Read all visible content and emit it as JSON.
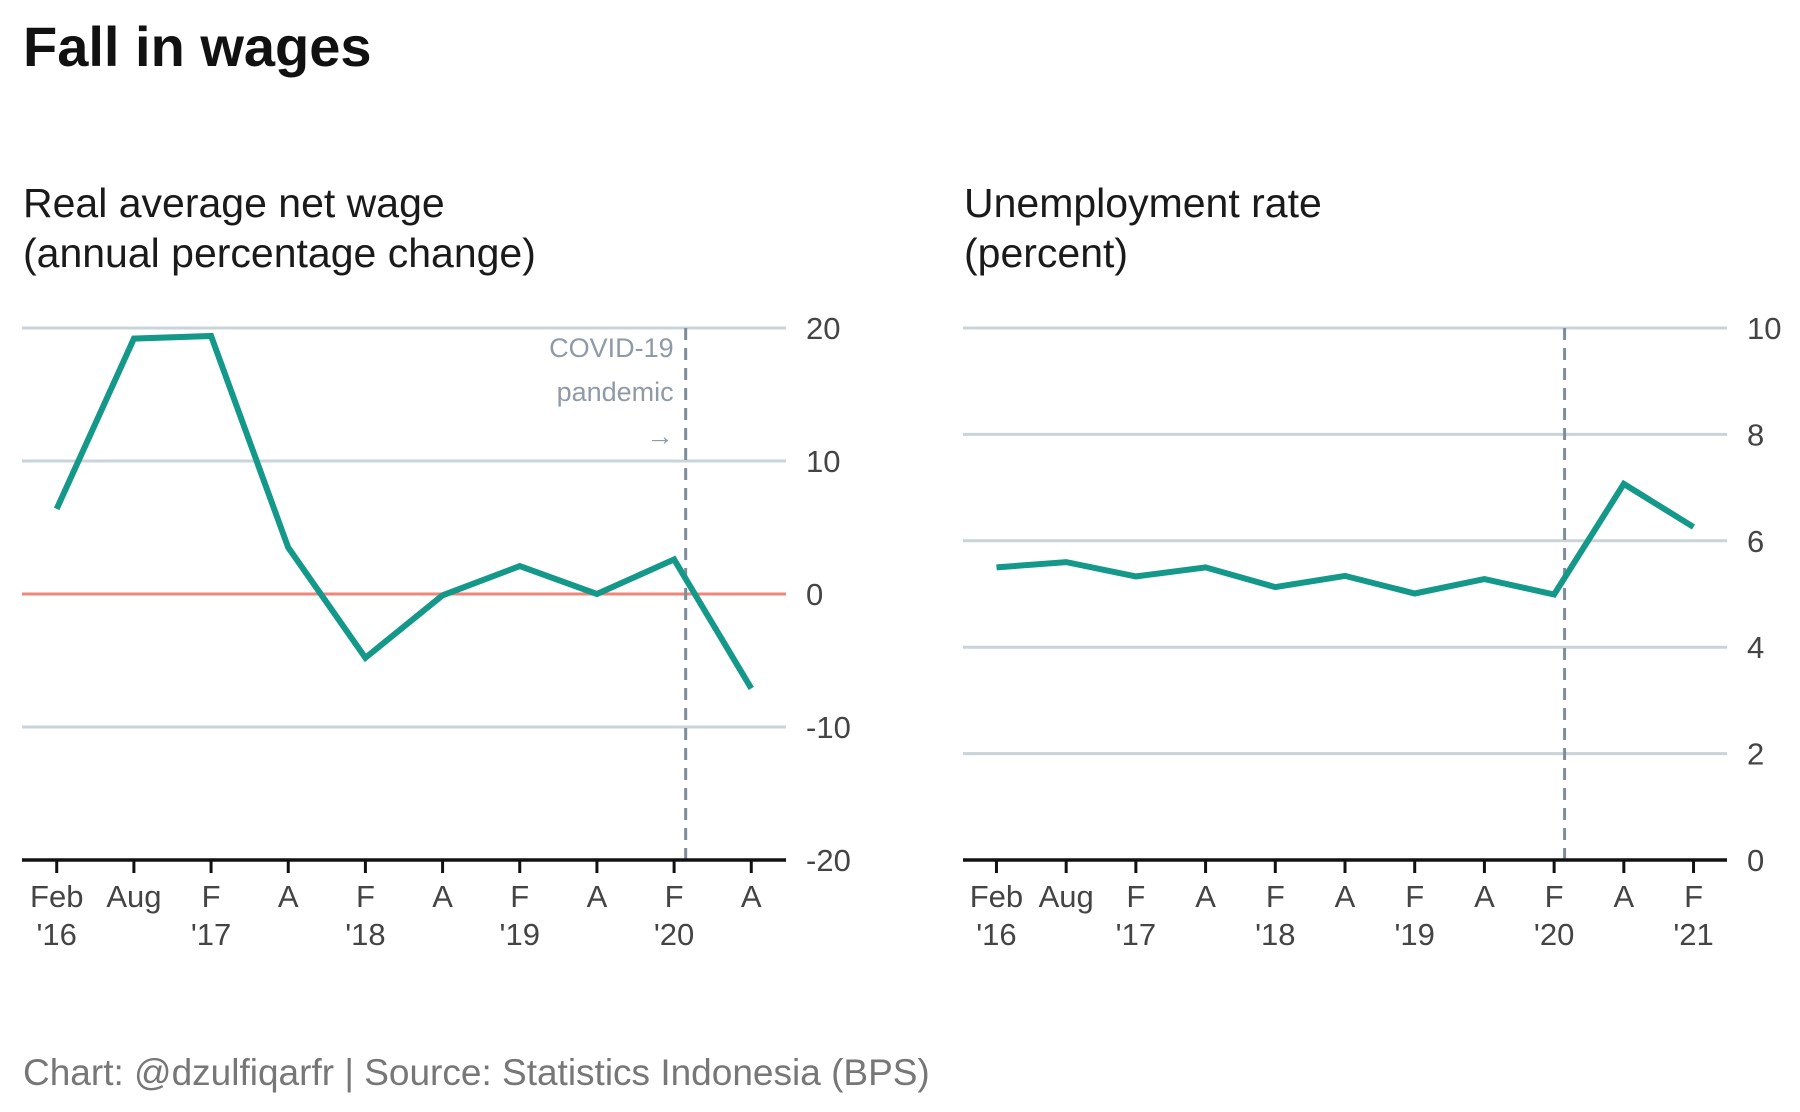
{
  "title": "Fall in wages",
  "footer": "Chart: @dzulfiqarfr | Source: Statistics Indonesia (BPS)",
  "colors": {
    "line": "#13988a",
    "zero_line": "#f0857a",
    "grid": "#c9d3da",
    "axis": "#111111",
    "event_line": "#7d8d99",
    "annotation": "#8e9aa6"
  },
  "chart_data": [
    {
      "type": "line",
      "title_lines": [
        "Real average net wage",
        "(annual percentage change)"
      ],
      "ylim": [
        -20,
        20
      ],
      "yticks": [
        -20,
        -10,
        0,
        10,
        20
      ],
      "y_axis_position": "right",
      "grid": true,
      "reference_line": 0,
      "x_ticks": [
        {
          "period": 0,
          "line1": "Feb",
          "line2": "'16"
        },
        {
          "period": 1,
          "line1": "Aug",
          "line2": ""
        },
        {
          "period": 2,
          "line1": "F",
          "line2": "'17"
        },
        {
          "period": 3,
          "line1": "A",
          "line2": ""
        },
        {
          "period": 4,
          "line1": "F",
          "line2": "'18"
        },
        {
          "period": 5,
          "line1": "A",
          "line2": ""
        },
        {
          "period": 6,
          "line1": "F",
          "line2": "'19"
        },
        {
          "period": 7,
          "line1": "A",
          "line2": ""
        },
        {
          "period": 8,
          "line1": "F",
          "line2": "'20"
        },
        {
          "period": 9,
          "line1": "A",
          "line2": ""
        }
      ],
      "x_range": [
        -0.45,
        9.45
      ],
      "series": [
        {
          "values": [
            6.4,
            19.2,
            19.4,
            3.5,
            -4.8,
            -0.1,
            2.1,
            0.0,
            2.6,
            -7.1
          ]
        }
      ],
      "event": {
        "period": 8.15,
        "annotation": [
          "COVID-19",
          "pandemic",
          "→"
        ]
      }
    },
    {
      "type": "line",
      "title_lines": [
        "Unemployment rate",
        "(percent)"
      ],
      "ylim": [
        0,
        10
      ],
      "yticks": [
        0,
        2,
        4,
        6,
        8,
        10
      ],
      "y_axis_position": "right",
      "grid": true,
      "x_ticks": [
        {
          "period": 0,
          "line1": "Feb",
          "line2": "'16"
        },
        {
          "period": 1,
          "line1": "Aug",
          "line2": ""
        },
        {
          "period": 2,
          "line1": "F",
          "line2": "'17"
        },
        {
          "period": 3,
          "line1": "A",
          "line2": ""
        },
        {
          "period": 4,
          "line1": "F",
          "line2": "'18"
        },
        {
          "period": 5,
          "line1": "A",
          "line2": ""
        },
        {
          "period": 6,
          "line1": "F",
          "line2": "'19"
        },
        {
          "period": 7,
          "line1": "A",
          "line2": ""
        },
        {
          "period": 8,
          "line1": "F",
          "line2": "'20"
        },
        {
          "period": 9,
          "line1": "A",
          "line2": ""
        },
        {
          "period": 10,
          "line1": "F",
          "line2": "'21"
        }
      ],
      "x_range": [
        -0.48,
        10.48
      ],
      "series": [
        {
          "values": [
            5.5,
            5.6,
            5.33,
            5.5,
            5.13,
            5.34,
            5.01,
            5.28,
            4.99,
            7.07,
            6.26
          ]
        }
      ],
      "event": {
        "period": 8.15,
        "annotation": []
      }
    }
  ]
}
